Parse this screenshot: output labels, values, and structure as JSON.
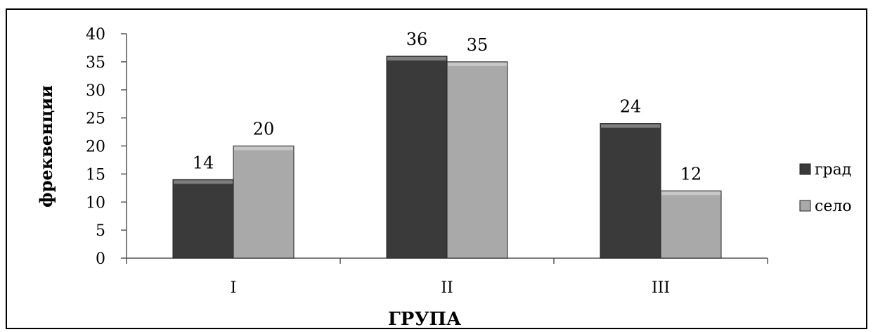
{
  "chart_data": {
    "type": "bar",
    "title": "",
    "xlabel": "ГРУПА",
    "ylabel": "фреквенции",
    "categories": [
      "I",
      "II",
      "III"
    ],
    "series": [
      {
        "name": "град",
        "values": [
          14,
          36,
          24
        ],
        "color": "#3a3a3a"
      },
      {
        "name": "село",
        "values": [
          20,
          35,
          12
        ],
        "color": "#a9a9a9"
      }
    ],
    "ylim": [
      0,
      40
    ],
    "yticks": [
      0,
      5,
      10,
      15,
      20,
      25,
      30,
      35,
      40
    ],
    "grid": false,
    "legend_position": "right",
    "data_labels": true
  }
}
